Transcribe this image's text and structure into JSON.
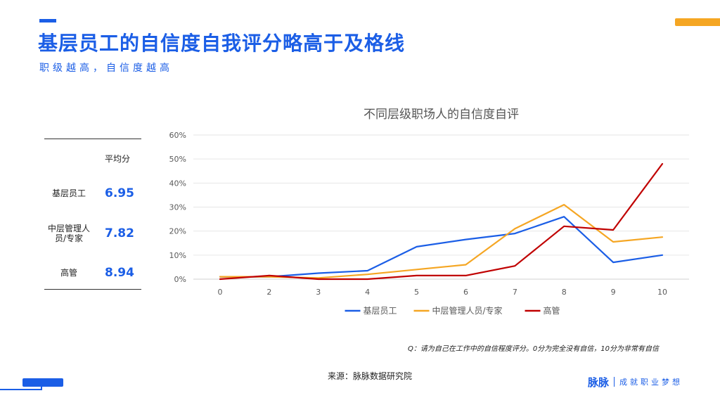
{
  "title": "基层员工的自信度自我评分略高于及格线",
  "subtitle": "职级越高，自信度越高",
  "scores": {
    "header": "平均分",
    "rows": [
      {
        "label": "基层员工",
        "value": "6.95"
      },
      {
        "label": "中层管理人员/专家",
        "value": "7.82"
      },
      {
        "label": "高管",
        "value": "8.94"
      }
    ]
  },
  "chart_data": {
    "type": "line",
    "title": "不同层级职场人的自信度自评",
    "x": [
      0,
      2,
      3,
      4,
      5,
      6,
      7,
      8,
      9,
      10
    ],
    "x_tick_labels": [
      "0",
      "2",
      "3",
      "4",
      "5",
      "6",
      "7",
      "8",
      "9",
      "10"
    ],
    "y_tick_labels": [
      "0%",
      "10%",
      "20%",
      "30%",
      "40%",
      "50%",
      "60%"
    ],
    "ylim": [
      0,
      60
    ],
    "grid": true,
    "legend_position": "bottom",
    "series": [
      {
        "name": "基层员工",
        "color": "#1b5ee6",
        "values": [
          1,
          1,
          2.5,
          3.5,
          13.5,
          16.5,
          19,
          26,
          7,
          10
        ]
      },
      {
        "name": "中层管理人员/专家",
        "color": "#f5a623",
        "values": [
          1,
          1,
          0.5,
          2,
          4,
          6,
          21,
          31,
          15.5,
          17.5
        ]
      },
      {
        "name": "高管",
        "color": "#c00000",
        "values": [
          0,
          1.5,
          0,
          0,
          1.5,
          1.5,
          5.5,
          22,
          20.5,
          48
        ]
      }
    ]
  },
  "note": "Q：请为自己在工作中的自信程度评分。0分为完全没有自信，10分为非常有自信",
  "source": "来源：脉脉数据研究院",
  "brand": {
    "logo": "脉脉",
    "slogan": "成就职业梦想"
  }
}
